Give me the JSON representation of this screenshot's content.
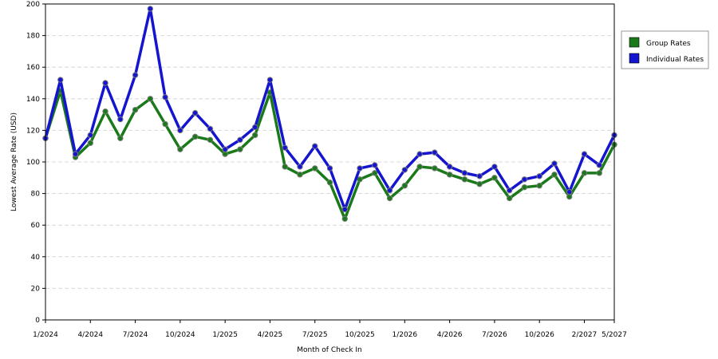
{
  "chart_data": {
    "type": "line",
    "title": "",
    "xlabel": "Month of Check In",
    "ylabel": "Lowest Average Rate (USD)",
    "ylim": [
      0,
      200
    ],
    "y_ticks": [
      "0",
      "20",
      "40",
      "60",
      "80",
      "100",
      "120",
      "140",
      "160",
      "180",
      "200"
    ],
    "x_tick_labels": [
      "1/2024",
      "4/2024",
      "7/2024",
      "10/2024",
      "1/2025",
      "4/2025",
      "7/2025",
      "10/2025",
      "1/2026",
      "4/2026",
      "7/2026",
      "10/2026",
      "2/2027",
      "5/2027"
    ],
    "x_tick_index": [
      0,
      3,
      6,
      9,
      12,
      15,
      18,
      21,
      24,
      27,
      30,
      33,
      36,
      38
    ],
    "grid": true,
    "legend_position": "right",
    "series": [
      {
        "name": "Group Rates",
        "color": "#1a7a1a",
        "values": [
          115,
          145,
          103,
          112,
          132,
          115,
          133,
          140,
          124,
          108,
          116,
          114,
          105,
          108,
          117,
          144,
          97,
          92,
          96,
          87,
          64,
          89,
          93,
          77,
          85,
          97,
          96,
          92,
          89,
          86,
          90,
          77,
          84,
          85,
          92,
          78,
          93,
          93,
          111
        ]
      },
      {
        "name": "Individual Rates",
        "color": "#1515d0",
        "values": [
          115,
          152,
          105,
          117,
          150,
          127,
          155,
          197,
          141,
          120,
          131,
          121,
          108,
          114,
          122,
          152,
          109,
          97,
          110,
          96,
          70,
          96,
          98,
          82,
          95,
          105,
          106,
          97,
          93,
          91,
          97,
          82,
          89,
          91,
          99,
          81,
          105,
          98,
          117
        ]
      }
    ]
  }
}
